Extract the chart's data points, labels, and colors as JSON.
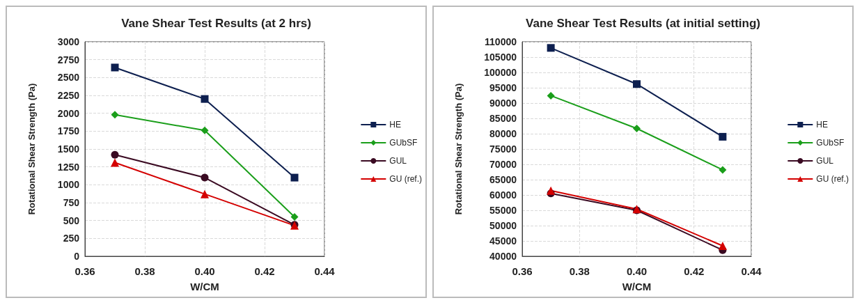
{
  "chart_data": [
    {
      "type": "line",
      "title": "Vane Shear Test Results (at 2 hrs)",
      "xlabel": "W/CM",
      "ylabel": "Rotational Shear Strength (Pa)",
      "x": [
        0.37,
        0.4,
        0.43
      ],
      "series": [
        {
          "name": "HE",
          "color": "#0d1f4f",
          "marker": "square",
          "values": [
            2640,
            2200,
            1100
          ]
        },
        {
          "name": "GUbSF",
          "color": "#1a9e1a",
          "marker": "diamond",
          "values": [
            1980,
            1760,
            550
          ]
        },
        {
          "name": "GUL",
          "color": "#3a0a22",
          "marker": "circle",
          "values": [
            1420,
            1100,
            440
          ]
        },
        {
          "name": "GU (ref.)",
          "color": "#d40000",
          "marker": "triangle",
          "values": [
            1310,
            870,
            430
          ]
        }
      ],
      "xlim": [
        0.36,
        0.44
      ],
      "xticks": [
        0.36,
        0.38,
        {
          "value": 0.4,
          "label": "0.40"
        },
        0.42,
        0.44
      ],
      "ylim": [
        0,
        3000
      ],
      "yticks": [
        0,
        250,
        500,
        750,
        1000,
        1250,
        1500,
        1750,
        2000,
        2250,
        2500,
        2750,
        3000
      ],
      "grid": true,
      "legend": "right",
      "line_style": "solid"
    },
    {
      "type": "line",
      "title": "Vane Shear Test Results (at initial setting)",
      "xlabel": "W/CM",
      "ylabel": "Rotational Shear Strength (Pa)",
      "x": [
        0.37,
        0.4,
        0.43
      ],
      "series": [
        {
          "name": "HE",
          "color": "#0d1f4f",
          "marker": "square",
          "values": [
            108000,
            96200,
            79000
          ]
        },
        {
          "name": "GUbSF",
          "color": "#1a9e1a",
          "marker": "diamond",
          "values": [
            92400,
            81700,
            68200
          ]
        },
        {
          "name": "GUL",
          "color": "#3a0a22",
          "marker": "circle",
          "values": [
            60500,
            55000,
            42000
          ]
        },
        {
          "name": "GU (ref.)",
          "color": "#d40000",
          "marker": "triangle",
          "values": [
            61400,
            55400,
            43400
          ]
        }
      ],
      "xlim": [
        0.36,
        0.44
      ],
      "xticks": [
        0.36,
        0.38,
        {
          "value": 0.4,
          "label": "0.40"
        },
        0.42,
        0.44
      ],
      "ylim": [
        40000,
        110000
      ],
      "yticks": [
        40000,
        45000,
        50000,
        55000,
        60000,
        65000,
        70000,
        75000,
        80000,
        85000,
        90000,
        95000,
        100000,
        105000,
        110000
      ],
      "grid": true,
      "legend": "right",
      "line_style": "solid"
    }
  ]
}
